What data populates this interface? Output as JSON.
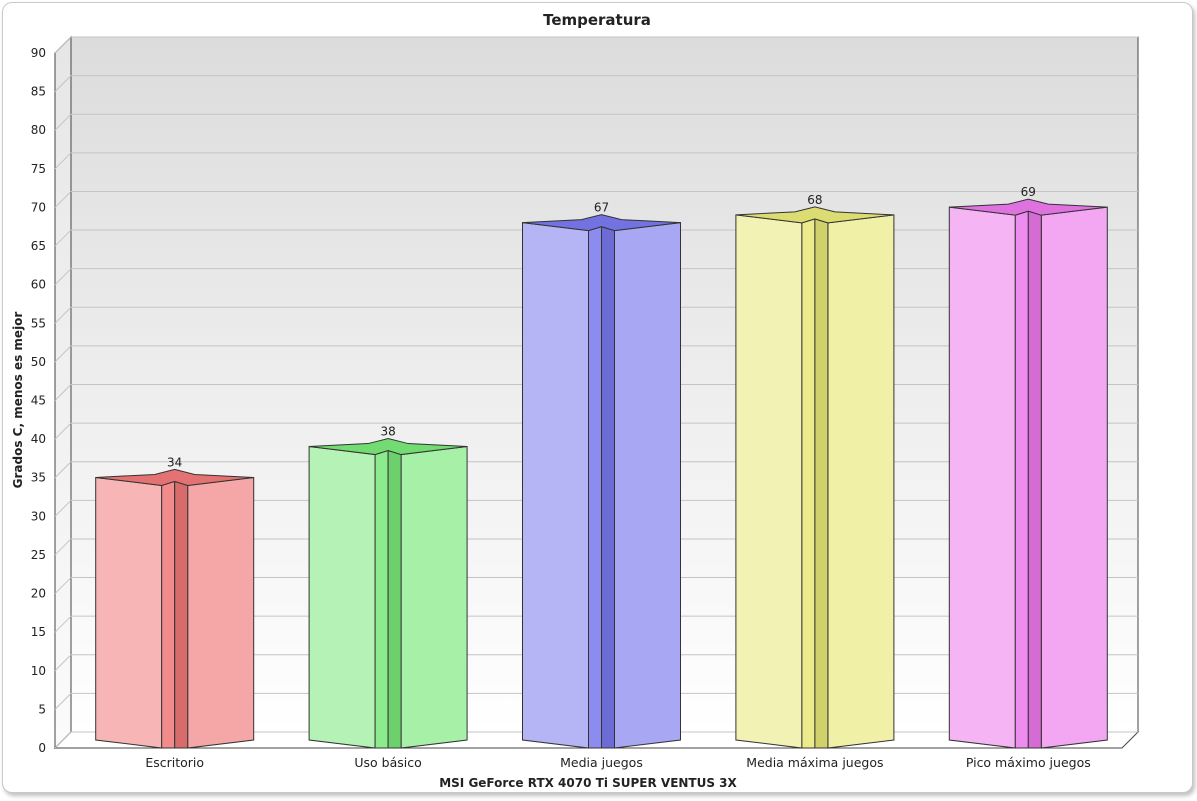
{
  "chart_data": {
    "type": "bar",
    "title": "Temperatura",
    "xlabel": "MSI GeForce RTX 4070 Ti SUPER VENTUS 3X",
    "ylabel": "Grados C, menos es mejor",
    "categories": [
      "Escritorio",
      "Uso básico",
      "Media juegos",
      "Media máxima juegos",
      "Pico máximo juegos"
    ],
    "values": [
      34,
      38,
      67,
      68,
      69
    ],
    "colors": [
      "#f07878",
      "#78e878",
      "#7878ec",
      "#e8e878",
      "#ec78ec"
    ],
    "ylim": [
      0,
      90
    ],
    "yticks": [
      0,
      5,
      10,
      15,
      20,
      25,
      30,
      35,
      40,
      45,
      50,
      55,
      60,
      65,
      70,
      75,
      80,
      85,
      90
    ],
    "grid": true,
    "data_labels": true,
    "style": "3d-star-prism"
  }
}
